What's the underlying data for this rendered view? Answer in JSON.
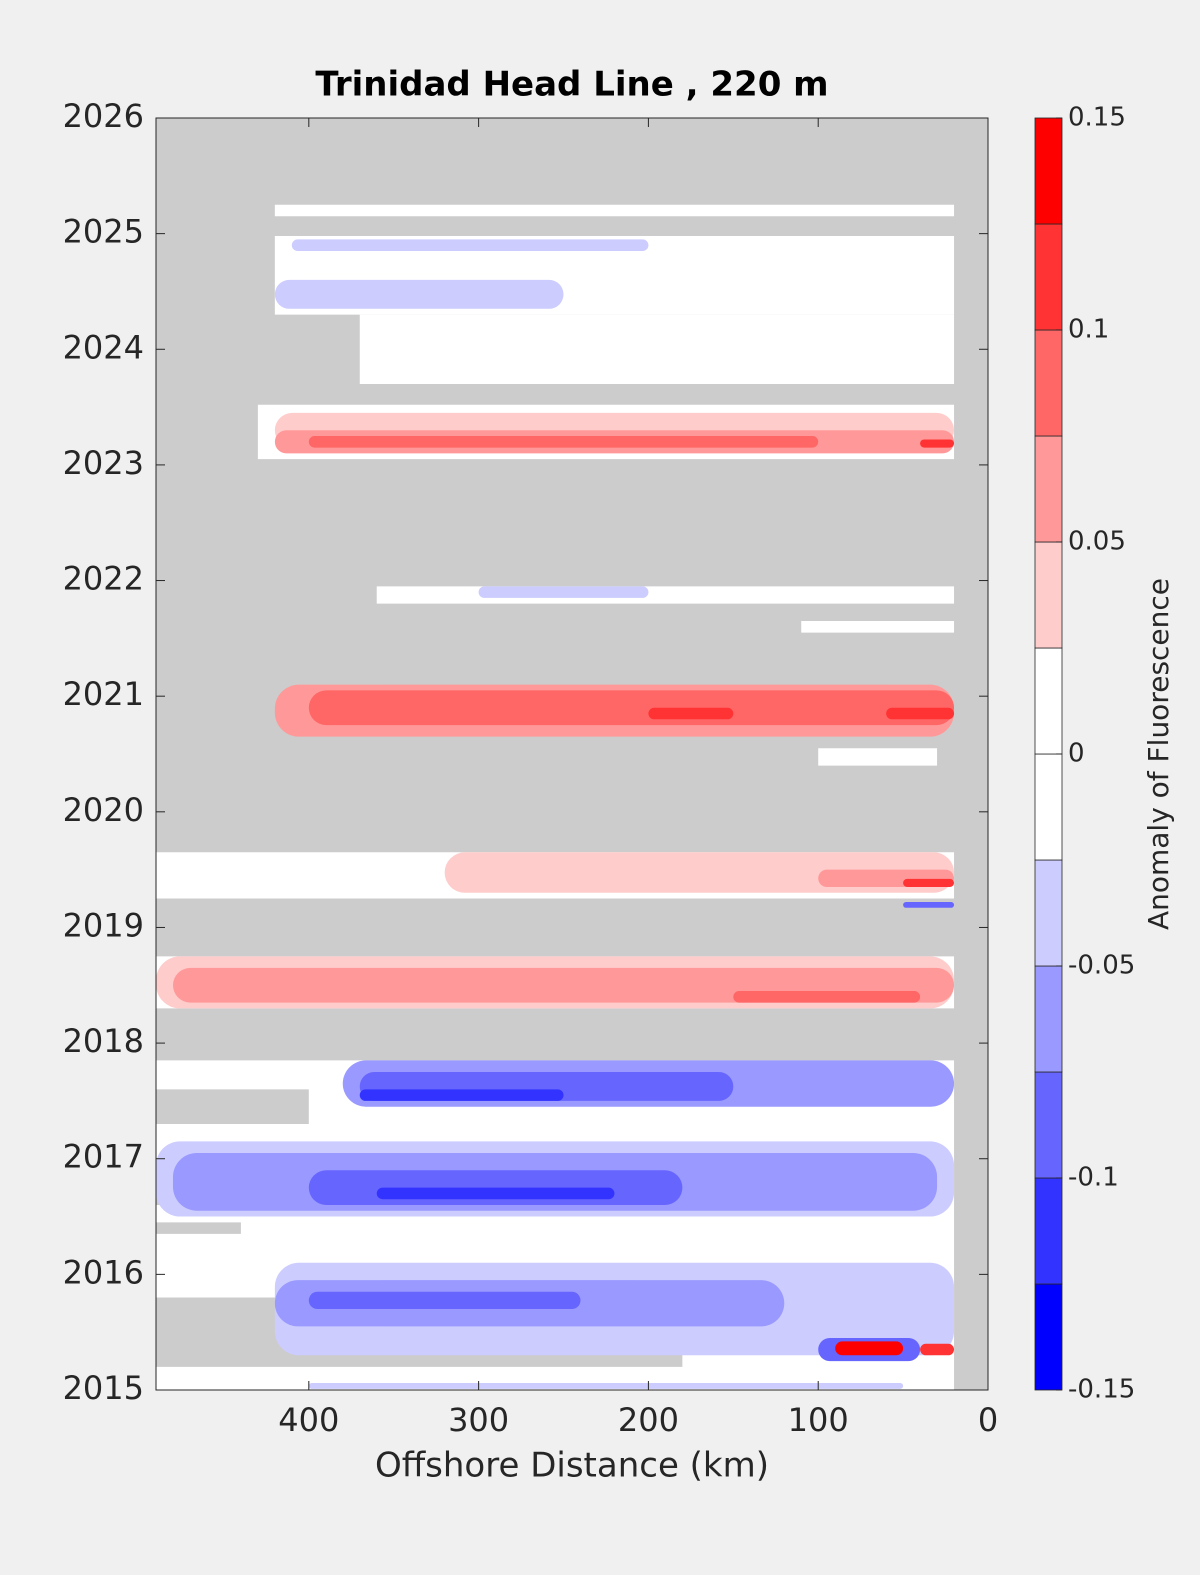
{
  "chart_data": {
    "type": "contour",
    "title": "Trinidad Head Line , 220 m",
    "xlabel": "Offshore Distance (km)",
    "xlim": [
      490,
      0
    ],
    "xticks": [
      400,
      300,
      200,
      100,
      0
    ],
    "ylim": [
      2015,
      2026
    ],
    "yticks": [
      2015,
      2016,
      2017,
      2018,
      2019,
      2020,
      2021,
      2022,
      2023,
      2024,
      2025,
      2026
    ],
    "missing_color": "#cccccc",
    "colorbar": {
      "label": "Anomaly of Fluorescence",
      "levels": [
        -0.15,
        -0.125,
        -0.1,
        -0.075,
        -0.05,
        -0.025,
        0,
        0.025,
        0.05,
        0.075,
        0.1,
        0.125,
        0.15
      ],
      "colors": [
        "#0000ff",
        "#3333ff",
        "#6666ff",
        "#9999ff",
        "#ccccff",
        "#ffffff",
        "#ffffff",
        "#ffcccc",
        "#ff9999",
        "#ff6666",
        "#ff3333",
        "#ff0000"
      ],
      "ticks": [
        -0.15,
        -0.1,
        -0.05,
        0,
        0.05,
        0.1,
        0.15
      ]
    },
    "regions": [
      {
        "x": [
          420,
          20
        ],
        "y": [
          2025.15,
          2025.25
        ],
        "value": 0
      },
      {
        "x": [
          420,
          20
        ],
        "y": [
          2024.3,
          2024.98
        ],
        "value": 0
      },
      {
        "x": [
          370,
          20
        ],
        "y": [
          2023.7,
          2024.3
        ],
        "value": 0
      },
      {
        "x": [
          430,
          20
        ],
        "y": [
          2023.05,
          2023.52
        ],
        "value": 0
      },
      {
        "x": [
          360,
          20
        ],
        "y": [
          2021.8,
          2021.95
        ],
        "value": 0
      },
      {
        "x": [
          110,
          20
        ],
        "y": [
          2021.55,
          2021.65
        ],
        "value": 0
      },
      {
        "x": [
          100,
          30
        ],
        "y": [
          2020.4,
          2020.55
        ],
        "value": 0
      },
      {
        "x": [
          490,
          20
        ],
        "y": [
          2019.25,
          2019.65
        ],
        "value": 0
      },
      {
        "x": [
          490,
          20
        ],
        "y": [
          2018.3,
          2018.75
        ],
        "value": 0
      },
      {
        "x": [
          490,
          20
        ],
        "y": [
          2015,
          2017.85
        ],
        "value": 0
      },
      {
        "x": [
          490,
          400
        ],
        "y": [
          2017.3,
          2017.6
        ],
        "value": null
      },
      {
        "x": [
          490,
          390
        ],
        "y": [
          2016.6,
          2016.8
        ],
        "value": null
      },
      {
        "x": [
          490,
          440
        ],
        "y": [
          2016.35,
          2016.45
        ],
        "value": null
      },
      {
        "x": [
          490,
          180
        ],
        "y": [
          2015.2,
          2015.8
        ],
        "value": null
      },
      {
        "x": [
          410,
          200
        ],
        "y": [
          2024.85,
          2024.95
        ],
        "value": -0.03
      },
      {
        "x": [
          420,
          250
        ],
        "y": [
          2024.35,
          2024.6
        ],
        "value": -0.035
      },
      {
        "x": [
          420,
          20
        ],
        "y": [
          2023.15,
          2023.45
        ],
        "value": 0.04
      },
      {
        "x": [
          420,
          20
        ],
        "y": [
          2023.1,
          2023.3
        ],
        "value": 0.07
      },
      {
        "x": [
          400,
          100
        ],
        "y": [
          2023.15,
          2023.25
        ],
        "value": 0.085
      },
      {
        "x": [
          40,
          20
        ],
        "y": [
          2023.15,
          2023.22
        ],
        "value": 0.11
      },
      {
        "x": [
          300,
          200
        ],
        "y": [
          2021.85,
          2021.95
        ],
        "value": -0.03
      },
      {
        "x": [
          420,
          20
        ],
        "y": [
          2020.65,
          2021.1
        ],
        "value": 0.06
      },
      {
        "x": [
          400,
          20
        ],
        "y": [
          2020.75,
          2021.05
        ],
        "value": 0.08
      },
      {
        "x": [
          200,
          150
        ],
        "y": [
          2020.8,
          2020.9
        ],
        "value": 0.11
      },
      {
        "x": [
          60,
          20
        ],
        "y": [
          2020.8,
          2020.9
        ],
        "value": 0.11
      },
      {
        "x": [
          320,
          20
        ],
        "y": [
          2019.3,
          2019.65
        ],
        "value": 0.04
      },
      {
        "x": [
          100,
          20
        ],
        "y": [
          2019.35,
          2019.5
        ],
        "value": 0.07
      },
      {
        "x": [
          50,
          20
        ],
        "y": [
          2019.35,
          2019.42
        ],
        "value": 0.11
      },
      {
        "x": [
          50,
          20
        ],
        "y": [
          2019.17,
          2019.22
        ],
        "value": -0.09
      },
      {
        "x": [
          490,
          20
        ],
        "y": [
          2018.3,
          2018.75
        ],
        "value": 0.04
      },
      {
        "x": [
          480,
          20
        ],
        "y": [
          2018.35,
          2018.65
        ],
        "value": 0.07
      },
      {
        "x": [
          150,
          40
        ],
        "y": [
          2018.35,
          2018.45
        ],
        "value": 0.1
      },
      {
        "x": [
          380,
          20
        ],
        "y": [
          2017.45,
          2017.85
        ],
        "value": -0.06
      },
      {
        "x": [
          370,
          150
        ],
        "y": [
          2017.5,
          2017.75
        ],
        "value": -0.08
      },
      {
        "x": [
          370,
          250
        ],
        "y": [
          2017.5,
          2017.6
        ],
        "value": -0.105
      },
      {
        "x": [
          490,
          20
        ],
        "y": [
          2016.5,
          2017.15
        ],
        "value": -0.04
      },
      {
        "x": [
          480,
          30
        ],
        "y": [
          2016.55,
          2017.05
        ],
        "value": -0.065
      },
      {
        "x": [
          400,
          180
        ],
        "y": [
          2016.6,
          2016.9
        ],
        "value": -0.085
      },
      {
        "x": [
          360,
          220
        ],
        "y": [
          2016.65,
          2016.75
        ],
        "value": -0.11
      },
      {
        "x": [
          420,
          20
        ],
        "y": [
          2015.3,
          2016.1
        ],
        "value": -0.035
      },
      {
        "x": [
          420,
          120
        ],
        "y": [
          2015.55,
          2015.95
        ],
        "value": -0.065
      },
      {
        "x": [
          400,
          240
        ],
        "y": [
          2015.7,
          2015.85
        ],
        "value": -0.09
      },
      {
        "x": [
          100,
          40
        ],
        "y": [
          2015.25,
          2015.45
        ],
        "value": -0.09
      },
      {
        "x": [
          90,
          50
        ],
        "y": [
          2015.3,
          2015.42
        ],
        "value": 0.13
      },
      {
        "x": [
          40,
          20
        ],
        "y": [
          2015.3,
          2015.4
        ],
        "value": 0.12
      },
      {
        "x": [
          400,
          50
        ],
        "y": [
          2015.01,
          2015.06
        ],
        "value": -0.03
      }
    ]
  }
}
